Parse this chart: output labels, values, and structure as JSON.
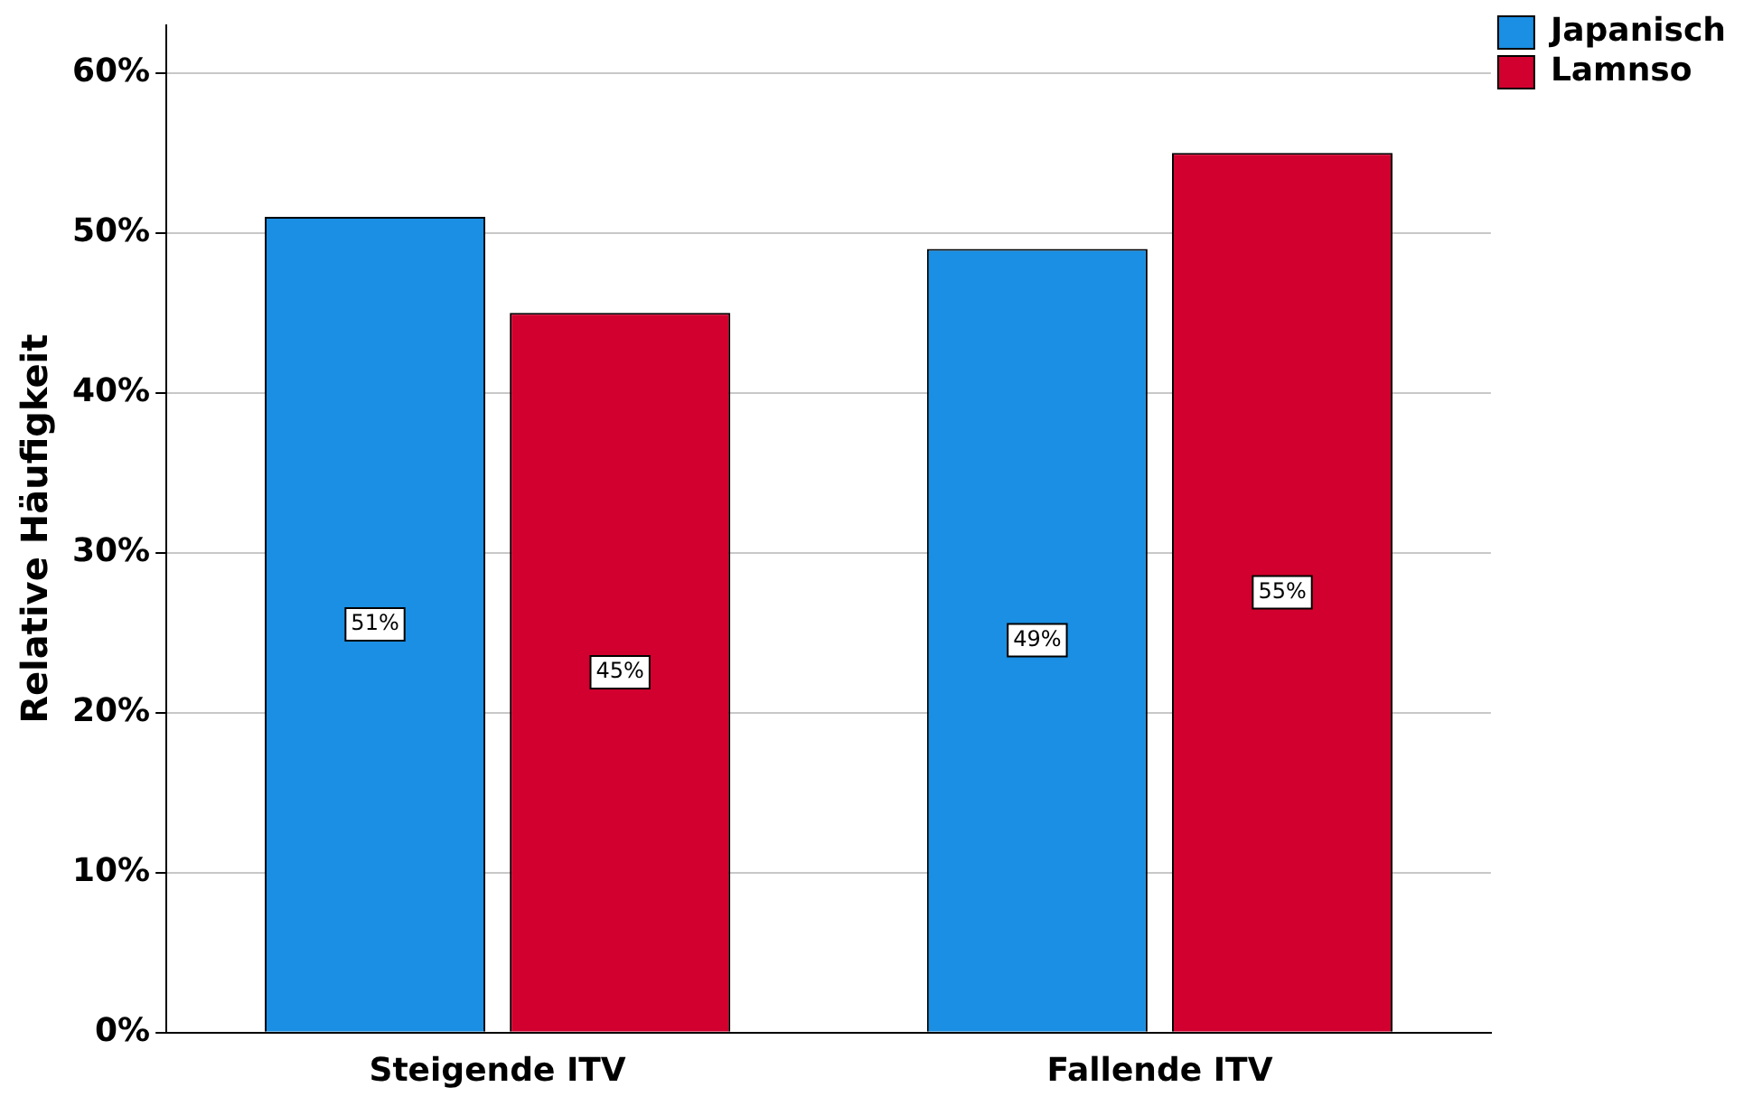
{
  "chart_data": {
    "type": "bar",
    "ylabel": "Relative Häufigkeit",
    "categories": [
      "Steigende ITV",
      "Fallende ITV"
    ],
    "series": [
      {
        "name": "Japanisch",
        "color": "#1a8fe3",
        "values": [
          51,
          49
        ],
        "value_labels": [
          "51%",
          "49%"
        ]
      },
      {
        "name": "Lamnso",
        "color": "#d2002e",
        "values": [
          45,
          55
        ],
        "value_labels": [
          "45%",
          "55%"
        ]
      }
    ],
    "ylim": [
      0,
      63
    ],
    "yticks": [
      {
        "value": 0,
        "label": "0%"
      },
      {
        "value": 10,
        "label": "10%"
      },
      {
        "value": 20,
        "label": "20%"
      },
      {
        "value": 30,
        "label": "30%"
      },
      {
        "value": 40,
        "label": "40%"
      },
      {
        "value": 50,
        "label": "50%"
      },
      {
        "value": 60,
        "label": "60%"
      }
    ],
    "grid": "y",
    "legend": "top right"
  }
}
